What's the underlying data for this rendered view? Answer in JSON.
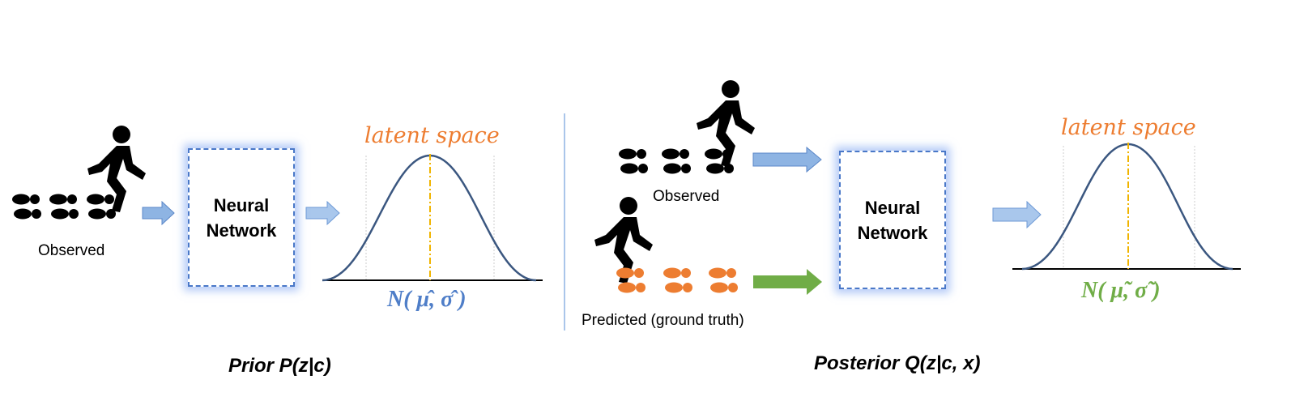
{
  "colors": {
    "walker": "#000000",
    "footprint_observed": "#000000",
    "footprint_predicted": "#ed7d31",
    "arrow_blue": "#8eb4e3",
    "arrow_green": "#70ad47",
    "box_border": "#4a78c8",
    "curve": "#3b5780",
    "latent_text": "#ed7d31",
    "prior_dist_text": "#4f7ec8",
    "posterior_dist_text": "#70ad47",
    "mean_line": "#f0b400"
  },
  "prior": {
    "observed_label": "Observed",
    "network_label": "Neural\nNetwork",
    "latent_label": "latent space",
    "distribution_label": "N( μ̂, σ̂ )",
    "caption": "Prior P(z|c)"
  },
  "posterior": {
    "observed_label": "Observed",
    "predicted_label": "Predicted (ground truth)",
    "network_label": "Neural\nNetwork",
    "latent_label": "latent space",
    "distribution_label": "N( μ̃, σ̃ )",
    "caption": "Posterior Q(z|c, x)"
  },
  "icons": [
    "walking-person-icon",
    "footprints-icon",
    "right-arrow-icon",
    "gaussian-curve-icon"
  ]
}
